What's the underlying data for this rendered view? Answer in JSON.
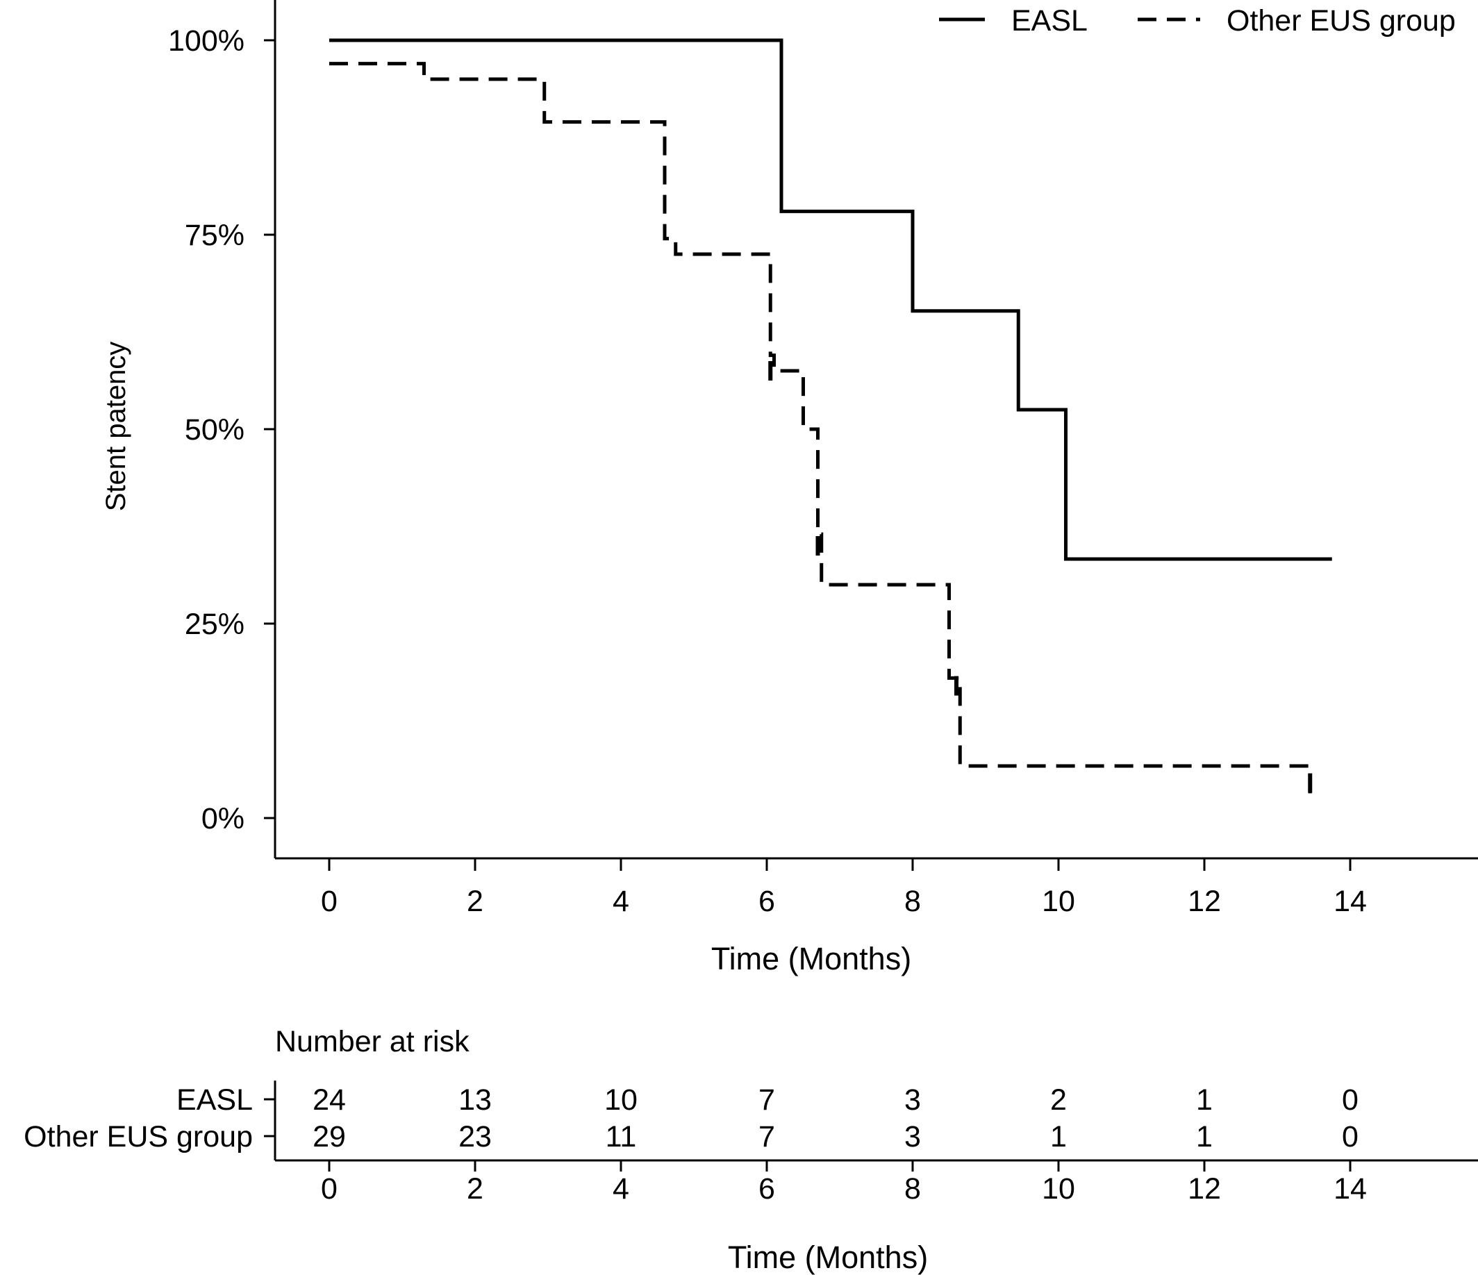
{
  "chart_data": [
    {
      "type": "line",
      "subtype": "kaplan-meier",
      "title": "",
      "xlabel": "Time (Months)",
      "ylabel": "Stent patency",
      "xlim": [
        0,
        15.5
      ],
      "ylim": [
        0,
        1
      ],
      "x_ticks": [
        0,
        2,
        4,
        6,
        8,
        10,
        12,
        14
      ],
      "y_ticks": [
        {
          "value": 0,
          "label": "0%"
        },
        {
          "value": 0.25,
          "label": "25%"
        },
        {
          "value": 0.5,
          "label": "50%"
        },
        {
          "value": 0.75,
          "label": "75%"
        },
        {
          "value": 1,
          "label": "100%"
        }
      ],
      "legend_position": "top-right",
      "grid": false,
      "series": [
        {
          "name": "EASL",
          "style": "solid",
          "color": "#000000",
          "steps": [
            [
              0,
              1.0
            ],
            [
              6.2,
              0.78
            ],
            [
              8.0,
              0.652
            ],
            [
              9.45,
              0.525
            ],
            [
              10.1,
              0.333
            ],
            [
              13.75,
              0.333
            ]
          ]
        },
        {
          "name": "Other EUS group",
          "style": "dashed",
          "color": "#000000",
          "steps": [
            [
              0,
              0.97
            ],
            [
              1.3,
              0.95
            ],
            [
              2.95,
              0.895
            ],
            [
              4.6,
              0.745
            ],
            [
              4.75,
              0.725
            ],
            [
              6.05,
              0.595
            ],
            [
              6.1,
              0.575
            ],
            [
              6.5,
              0.5
            ],
            [
              6.7,
              0.365
            ],
            [
              6.75,
              0.3
            ],
            [
              8.5,
              0.18
            ],
            [
              8.65,
              0.067
            ],
            [
              13.45,
              0.03
            ]
          ],
          "censor_marks": [
            [
              6.05,
              0.575
            ],
            [
              6.7,
              0.35
            ],
            [
              8.6,
              0.17
            ],
            [
              13.45,
              0.045
            ]
          ]
        }
      ]
    },
    {
      "type": "table",
      "title": "Number at risk",
      "xlabel": "Time (Months)",
      "x_ticks": [
        0,
        2,
        4,
        6,
        8,
        10,
        12,
        14
      ],
      "rows": [
        {
          "name": "EASL",
          "values": [
            24,
            13,
            10,
            7,
            3,
            2,
            1,
            0
          ]
        },
        {
          "name": "Other EUS group",
          "values": [
            29,
            23,
            11,
            7,
            3,
            1,
            1,
            0
          ]
        }
      ]
    }
  ]
}
